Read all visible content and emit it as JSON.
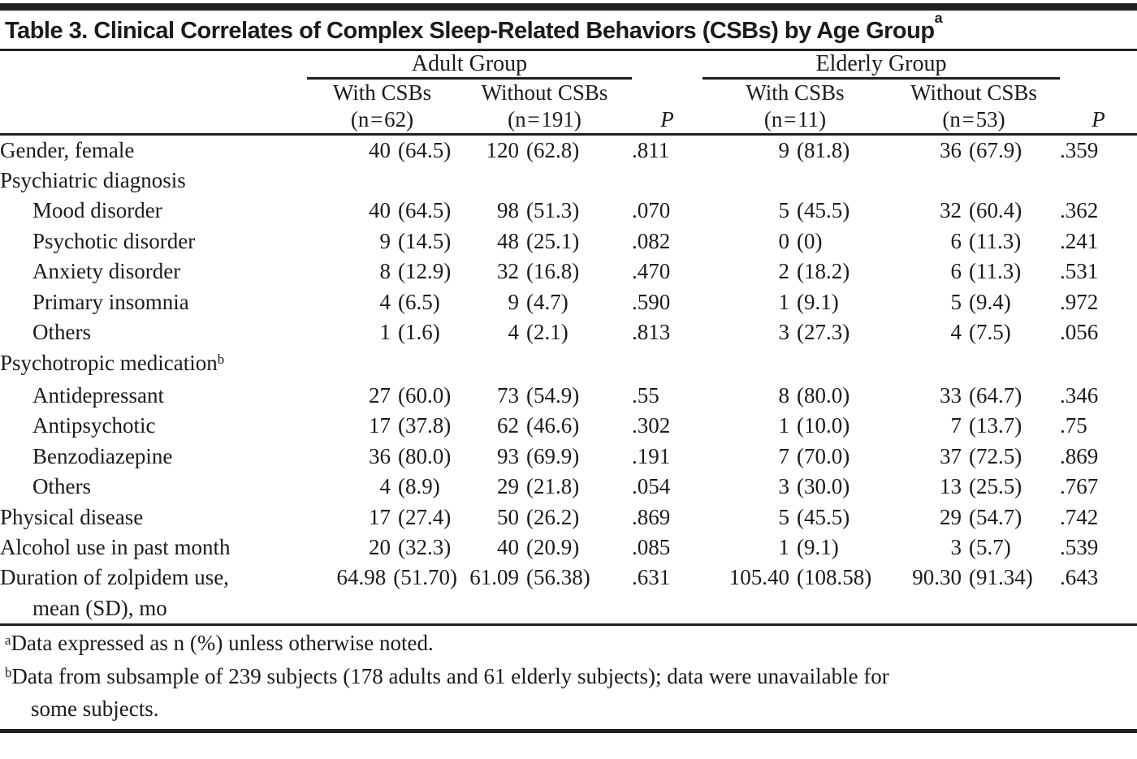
{
  "colors": {
    "text": "#1b1b1b",
    "rule": "#231f20",
    "background": "#ffffff"
  },
  "table": {
    "title": {
      "text": "Table 3. Clinical Correlates of Complex Sleep-Related Behaviors (CSBs) by Age Group",
      "sup": "a"
    },
    "column_groups": [
      {
        "label": "Adult Group",
        "columns": [
          {
            "line1": "With CSBs",
            "line2": "(n = 62)"
          },
          {
            "line1": "Without CSBs",
            "line2": "(n = 191)"
          }
        ],
        "p_label": "P"
      },
      {
        "label": "Elderly Group",
        "columns": [
          {
            "line1": "With CSBs",
            "line2": "(n = 11)"
          },
          {
            "line1": "Without CSBs",
            "line2": "(n = 53)"
          }
        ],
        "p_label": "P"
      }
    ],
    "rows": [
      {
        "type": "data",
        "label": "Gender, female",
        "cells": [
          "40 (64.5)",
          "120 (62.8)",
          ".811",
          "9 (81.8)",
          "36 (67.9)",
          ".359"
        ]
      },
      {
        "type": "section",
        "label": "Psychiatric diagnosis"
      },
      {
        "type": "data",
        "indent": true,
        "label": "Mood disorder",
        "cells": [
          "40 (64.5)",
          "98 (51.3)",
          ".070",
          "5 (45.5)",
          "32 (60.4)",
          ".362"
        ]
      },
      {
        "type": "data",
        "indent": true,
        "label": "Psychotic disorder",
        "cells": [
          "9 (14.5)",
          "48 (25.1)",
          ".082",
          "0 (0)",
          "6 (11.3)",
          ".241"
        ]
      },
      {
        "type": "data",
        "indent": true,
        "label": "Anxiety disorder",
        "cells": [
          "8 (12.9)",
          "32 (16.8)",
          ".470",
          "2 (18.2)",
          "6 (11.3)",
          ".531"
        ]
      },
      {
        "type": "data",
        "indent": true,
        "label": "Primary insomnia",
        "cells": [
          "4 (6.5)",
          "9 (4.7)",
          ".590",
          "1 (9.1)",
          "5 (9.4)",
          ".972"
        ]
      },
      {
        "type": "data",
        "indent": true,
        "label": "Others",
        "cells": [
          "1 (1.6)",
          "4 (2.1)",
          ".813",
          "3 (27.3)",
          "4 (7.5)",
          ".056"
        ]
      },
      {
        "type": "section",
        "label": "Psychotropic medication",
        "sup": "b"
      },
      {
        "type": "data",
        "indent": true,
        "label": "Antidepressant",
        "cells": [
          "27 (60.0)",
          "73 (54.9)",
          ".55",
          "8 (80.0)",
          "33 (64.7)",
          ".346"
        ]
      },
      {
        "type": "data",
        "indent": true,
        "label": "Antipsychotic",
        "cells": [
          "17 (37.8)",
          "62 (46.6)",
          ".302",
          "1 (10.0)",
          "7 (13.7)",
          ".75"
        ]
      },
      {
        "type": "data",
        "indent": true,
        "label": "Benzodiazepine",
        "cells": [
          "36 (80.0)",
          "93 (69.9)",
          ".191",
          "7 (70.0)",
          "37 (72.5)",
          ".869"
        ]
      },
      {
        "type": "data",
        "indent": true,
        "label": "Others",
        "cells": [
          "4 (8.9)",
          "29 (21.8)",
          ".054",
          "3 (30.0)",
          "13 (25.5)",
          ".767"
        ]
      },
      {
        "type": "data",
        "label": "Physical disease",
        "cells": [
          "17 (27.4)",
          "50 (26.2)",
          ".869",
          "5 (45.5)",
          "29 (54.7)",
          ".742"
        ]
      },
      {
        "type": "data",
        "label": "Alcohol use in past month",
        "cells": [
          "20 (32.3)",
          "40 (20.9)",
          ".085",
          "1 (9.1)",
          "3 (5.7)",
          ".539"
        ]
      },
      {
        "type": "data",
        "label": "Duration of zolpidem use,",
        "label_line2": "mean (SD), mo",
        "cells": [
          "64.98 (51.70)",
          "61.09 (56.38)",
          ".631",
          "105.40 (108.58)",
          "90.30 (91.34)",
          ".643"
        ]
      }
    ],
    "footnotes": [
      {
        "marker": "a",
        "lines": [
          "Data expressed as n (%) unless otherwise noted."
        ]
      },
      {
        "marker": "b",
        "lines": [
          "Data from subsample of 239 subjects (178 adults and 61 elderly subjects); data were unavailable for",
          "some subjects."
        ]
      }
    ]
  }
}
